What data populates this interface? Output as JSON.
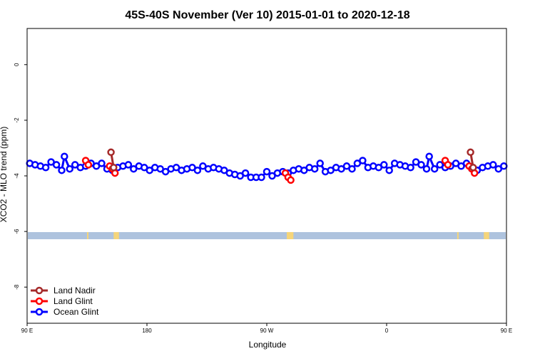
{
  "chart_data": {
    "type": "line",
    "title": "45S-40S November (Ver 10)   2015-01-01 to 2020-12-18",
    "xlabel": "Longitude",
    "ylabel": "XCO2 - MLO trend (ppm)",
    "xlim": [
      90,
      450
    ],
    "ylim": [
      1.3,
      -9.3
    ],
    "x_ticks": [
      {
        "value": 90,
        "label": "90 E"
      },
      {
        "value": 180,
        "label": "180"
      },
      {
        "value": 270,
        "label": "90 W"
      },
      {
        "value": 360,
        "label": "0"
      },
      {
        "value": 450,
        "label": "90 E"
      },
      {
        "value": 540,
        "label": "180"
      }
    ],
    "y_ticks": [
      {
        "value": 0,
        "label": "0"
      },
      {
        "value": -2,
        "label": "-2"
      },
      {
        "value": -4,
        "label": "-4"
      },
      {
        "value": -6,
        "label": "-6"
      },
      {
        "value": -8,
        "label": "-8"
      }
    ],
    "legend_position": "bottom-left",
    "band": {
      "y": -6.15,
      "color": "#aec3de",
      "land_color": "#f5d57a",
      "land_segments": [
        [
          135,
          136
        ],
        [
          155,
          159
        ],
        [
          285,
          290
        ],
        [
          413,
          414
        ],
        [
          433,
          437
        ]
      ]
    },
    "series": [
      {
        "name": "Land Nadir",
        "color": "#a52a2a",
        "segments": [
          [
            {
              "x": 153,
              "y": -3.15
            },
            {
              "x": 155,
              "y": -3.7
            }
          ],
          [
            {
              "x": 423,
              "y": -3.15
            },
            {
              "x": 425,
              "y": -3.7
            }
          ]
        ]
      },
      {
        "name": "Land Glint",
        "color": "#ff0000",
        "segments": [
          [
            {
              "x": 134,
              "y": -3.45
            },
            {
              "x": 136,
              "y": -3.6
            }
          ],
          [
            {
              "x": 152,
              "y": -3.65
            },
            {
              "x": 154,
              "y": -3.75
            },
            {
              "x": 156,
              "y": -3.9
            }
          ],
          [
            {
              "x": 284,
              "y": -3.9
            },
            {
              "x": 286,
              "y": -4.05
            },
            {
              "x": 288,
              "y": -4.15
            }
          ],
          [
            {
              "x": 404,
              "y": -3.45
            },
            {
              "x": 406,
              "y": -3.6
            }
          ],
          [
            {
              "x": 422,
              "y": -3.65
            },
            {
              "x": 424,
              "y": -3.75
            },
            {
              "x": 426,
              "y": -3.9
            }
          ]
        ]
      },
      {
        "name": "Ocean Glint",
        "color": "#0000ff",
        "segments": [
          [
            {
              "x": 92,
              "y": -3.55
            },
            {
              "x": 96,
              "y": -3.6
            },
            {
              "x": 100,
              "y": -3.65
            },
            {
              "x": 104,
              "y": -3.7
            },
            {
              "x": 108,
              "y": -3.5
            },
            {
              "x": 112,
              "y": -3.6
            },
            {
              "x": 116,
              "y": -3.8
            },
            {
              "x": 118,
              "y": -3.3
            },
            {
              "x": 122,
              "y": -3.75
            },
            {
              "x": 126,
              "y": -3.6
            },
            {
              "x": 130,
              "y": -3.7
            },
            {
              "x": 134,
              "y": -3.65
            },
            {
              "x": 138,
              "y": -3.55
            },
            {
              "x": 142,
              "y": -3.65
            },
            {
              "x": 146,
              "y": -3.55
            },
            {
              "x": 150,
              "y": -3.75
            },
            {
              "x": 154,
              "y": -3.8
            },
            {
              "x": 158,
              "y": -3.7
            },
            {
              "x": 162,
              "y": -3.65
            },
            {
              "x": 166,
              "y": -3.6
            },
            {
              "x": 170,
              "y": -3.75
            },
            {
              "x": 174,
              "y": -3.65
            },
            {
              "x": 178,
              "y": -3.7
            },
            {
              "x": 182,
              "y": -3.8
            },
            {
              "x": 186,
              "y": -3.7
            },
            {
              "x": 190,
              "y": -3.75
            },
            {
              "x": 194,
              "y": -3.85
            },
            {
              "x": 198,
              "y": -3.75
            },
            {
              "x": 202,
              "y": -3.7
            },
            {
              "x": 206,
              "y": -3.8
            },
            {
              "x": 210,
              "y": -3.75
            },
            {
              "x": 214,
              "y": -3.7
            },
            {
              "x": 218,
              "y": -3.8
            },
            {
              "x": 222,
              "y": -3.65
            },
            {
              "x": 226,
              "y": -3.75
            },
            {
              "x": 230,
              "y": -3.7
            },
            {
              "x": 234,
              "y": -3.75
            },
            {
              "x": 238,
              "y": -3.8
            },
            {
              "x": 242,
              "y": -3.9
            },
            {
              "x": 246,
              "y": -3.95
            },
            {
              "x": 250,
              "y": -4.0
            },
            {
              "x": 254,
              "y": -3.9
            },
            {
              "x": 258,
              "y": -4.05
            },
            {
              "x": 262,
              "y": -4.05
            },
            {
              "x": 266,
              "y": -4.05
            },
            {
              "x": 270,
              "y": -3.85
            },
            {
              "x": 274,
              "y": -4.0
            },
            {
              "x": 278,
              "y": -3.9
            },
            {
              "x": 282,
              "y": -3.85
            },
            {
              "x": 286,
              "y": -3.9
            },
            {
              "x": 290,
              "y": -3.8
            },
            {
              "x": 294,
              "y": -3.75
            },
            {
              "x": 298,
              "y": -3.8
            },
            {
              "x": 302,
              "y": -3.7
            },
            {
              "x": 306,
              "y": -3.75
            },
            {
              "x": 310,
              "y": -3.55
            },
            {
              "x": 314,
              "y": -3.85
            },
            {
              "x": 318,
              "y": -3.8
            },
            {
              "x": 322,
              "y": -3.7
            },
            {
              "x": 326,
              "y": -3.75
            },
            {
              "x": 330,
              "y": -3.65
            },
            {
              "x": 334,
              "y": -3.75
            },
            {
              "x": 338,
              "y": -3.55
            },
            {
              "x": 342,
              "y": -3.45
            },
            {
              "x": 346,
              "y": -3.7
            },
            {
              "x": 350,
              "y": -3.65
            },
            {
              "x": 354,
              "y": -3.7
            },
            {
              "x": 358,
              "y": -3.6
            },
            {
              "x": 362,
              "y": -3.8
            },
            {
              "x": 366,
              "y": -3.55
            },
            {
              "x": 370,
              "y": -3.6
            },
            {
              "x": 374,
              "y": -3.65
            },
            {
              "x": 378,
              "y": -3.7
            },
            {
              "x": 382,
              "y": -3.5
            },
            {
              "x": 386,
              "y": -3.6
            },
            {
              "x": 390,
              "y": -3.75
            },
            {
              "x": 392,
              "y": -3.3
            },
            {
              "x": 396,
              "y": -3.75
            },
            {
              "x": 400,
              "y": -3.6
            },
            {
              "x": 404,
              "y": -3.7
            },
            {
              "x": 408,
              "y": -3.65
            },
            {
              "x": 412,
              "y": -3.55
            },
            {
              "x": 416,
              "y": -3.65
            },
            {
              "x": 420,
              "y": -3.55
            },
            {
              "x": 424,
              "y": -3.75
            },
            {
              "x": 428,
              "y": -3.8
            },
            {
              "x": 432,
              "y": -3.7
            },
            {
              "x": 436,
              "y": -3.65
            },
            {
              "x": 440,
              "y": -3.6
            },
            {
              "x": 444,
              "y": -3.75
            },
            {
              "x": 448,
              "y": -3.65
            }
          ]
        ]
      }
    ]
  }
}
